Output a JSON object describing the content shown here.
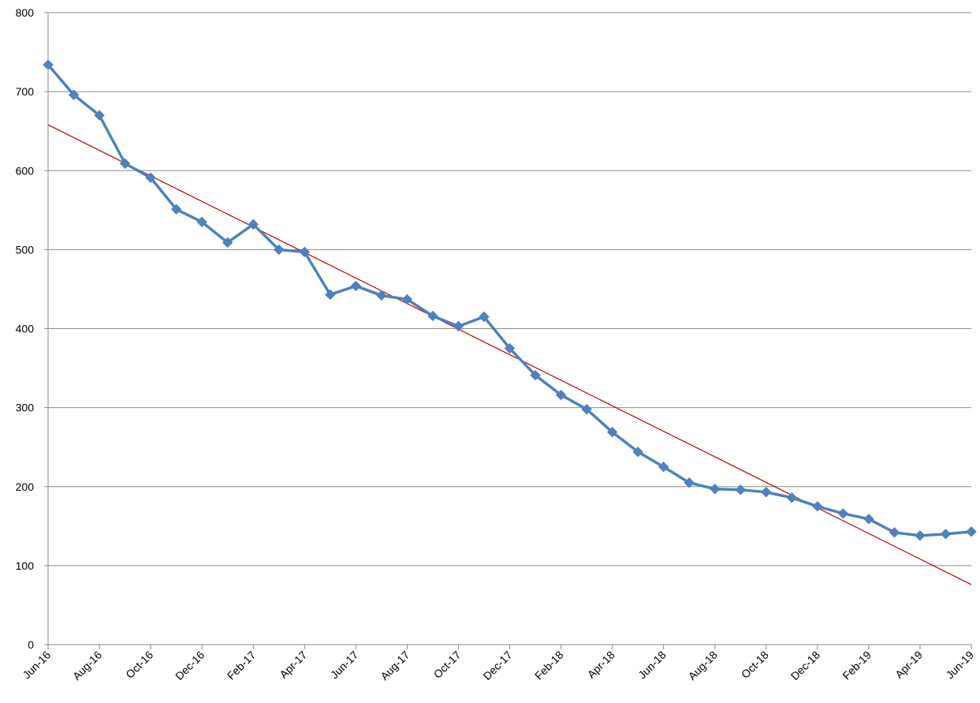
{
  "chart_data": {
    "type": "line",
    "title": "",
    "xlabel": "",
    "ylabel": "",
    "ylim": [
      0,
      800
    ],
    "y_ticks": [
      "0",
      "100",
      "200",
      "300",
      "400",
      "500",
      "600",
      "700",
      "800"
    ],
    "x": [
      "Jun-16",
      "Jul-16",
      "Aug-16",
      "Sep-16",
      "Oct-16",
      "Nov-16",
      "Dec-16",
      "Jan-17",
      "Feb-17",
      "Mar-17",
      "Apr-17",
      "May-17",
      "Jun-17",
      "Jul-17",
      "Aug-17",
      "Sep-17",
      "Oct-17",
      "Nov-17",
      "Dec-17",
      "Jan-18",
      "Feb-18",
      "Mar-18",
      "Apr-18",
      "May-18",
      "Jun-18",
      "Jul-18",
      "Aug-18",
      "Sep-18",
      "Oct-18",
      "Nov-18",
      "Dec-18",
      "Jan-19",
      "Feb-19",
      "Mar-19",
      "Apr-19",
      "May-19",
      "Jun-19"
    ],
    "x_tick_labels": [
      "Jun-16",
      "Aug-16",
      "Oct-16",
      "Dec-16",
      "Feb-17",
      "Apr-17",
      "Jun-17",
      "Aug-17",
      "Oct-17",
      "Dec-17",
      "Feb-18",
      "Apr-18",
      "Jun-18",
      "Aug-18",
      "Oct-18",
      "Dec-18",
      "Feb-19",
      "Apr-19",
      "Jun-19"
    ],
    "series": [
      {
        "values": [
          734,
          696,
          670,
          609,
          591,
          551,
          535,
          509,
          532,
          500,
          497,
          443,
          454,
          442,
          437,
          416,
          403,
          415,
          375,
          341,
          316,
          298,
          269,
          244,
          225,
          205,
          197,
          196,
          193,
          186,
          175,
          166,
          159,
          142,
          138,
          140,
          143
        ],
        "color": "#4F81BD",
        "marker": "diamond"
      }
    ],
    "trendline": {
      "kind": "linear",
      "start": [
        "Jun-16",
        658
      ],
      "end": [
        "Jun-19",
        76
      ],
      "color": "#C00000"
    },
    "grid": "horizontal",
    "legend": "none"
  }
}
